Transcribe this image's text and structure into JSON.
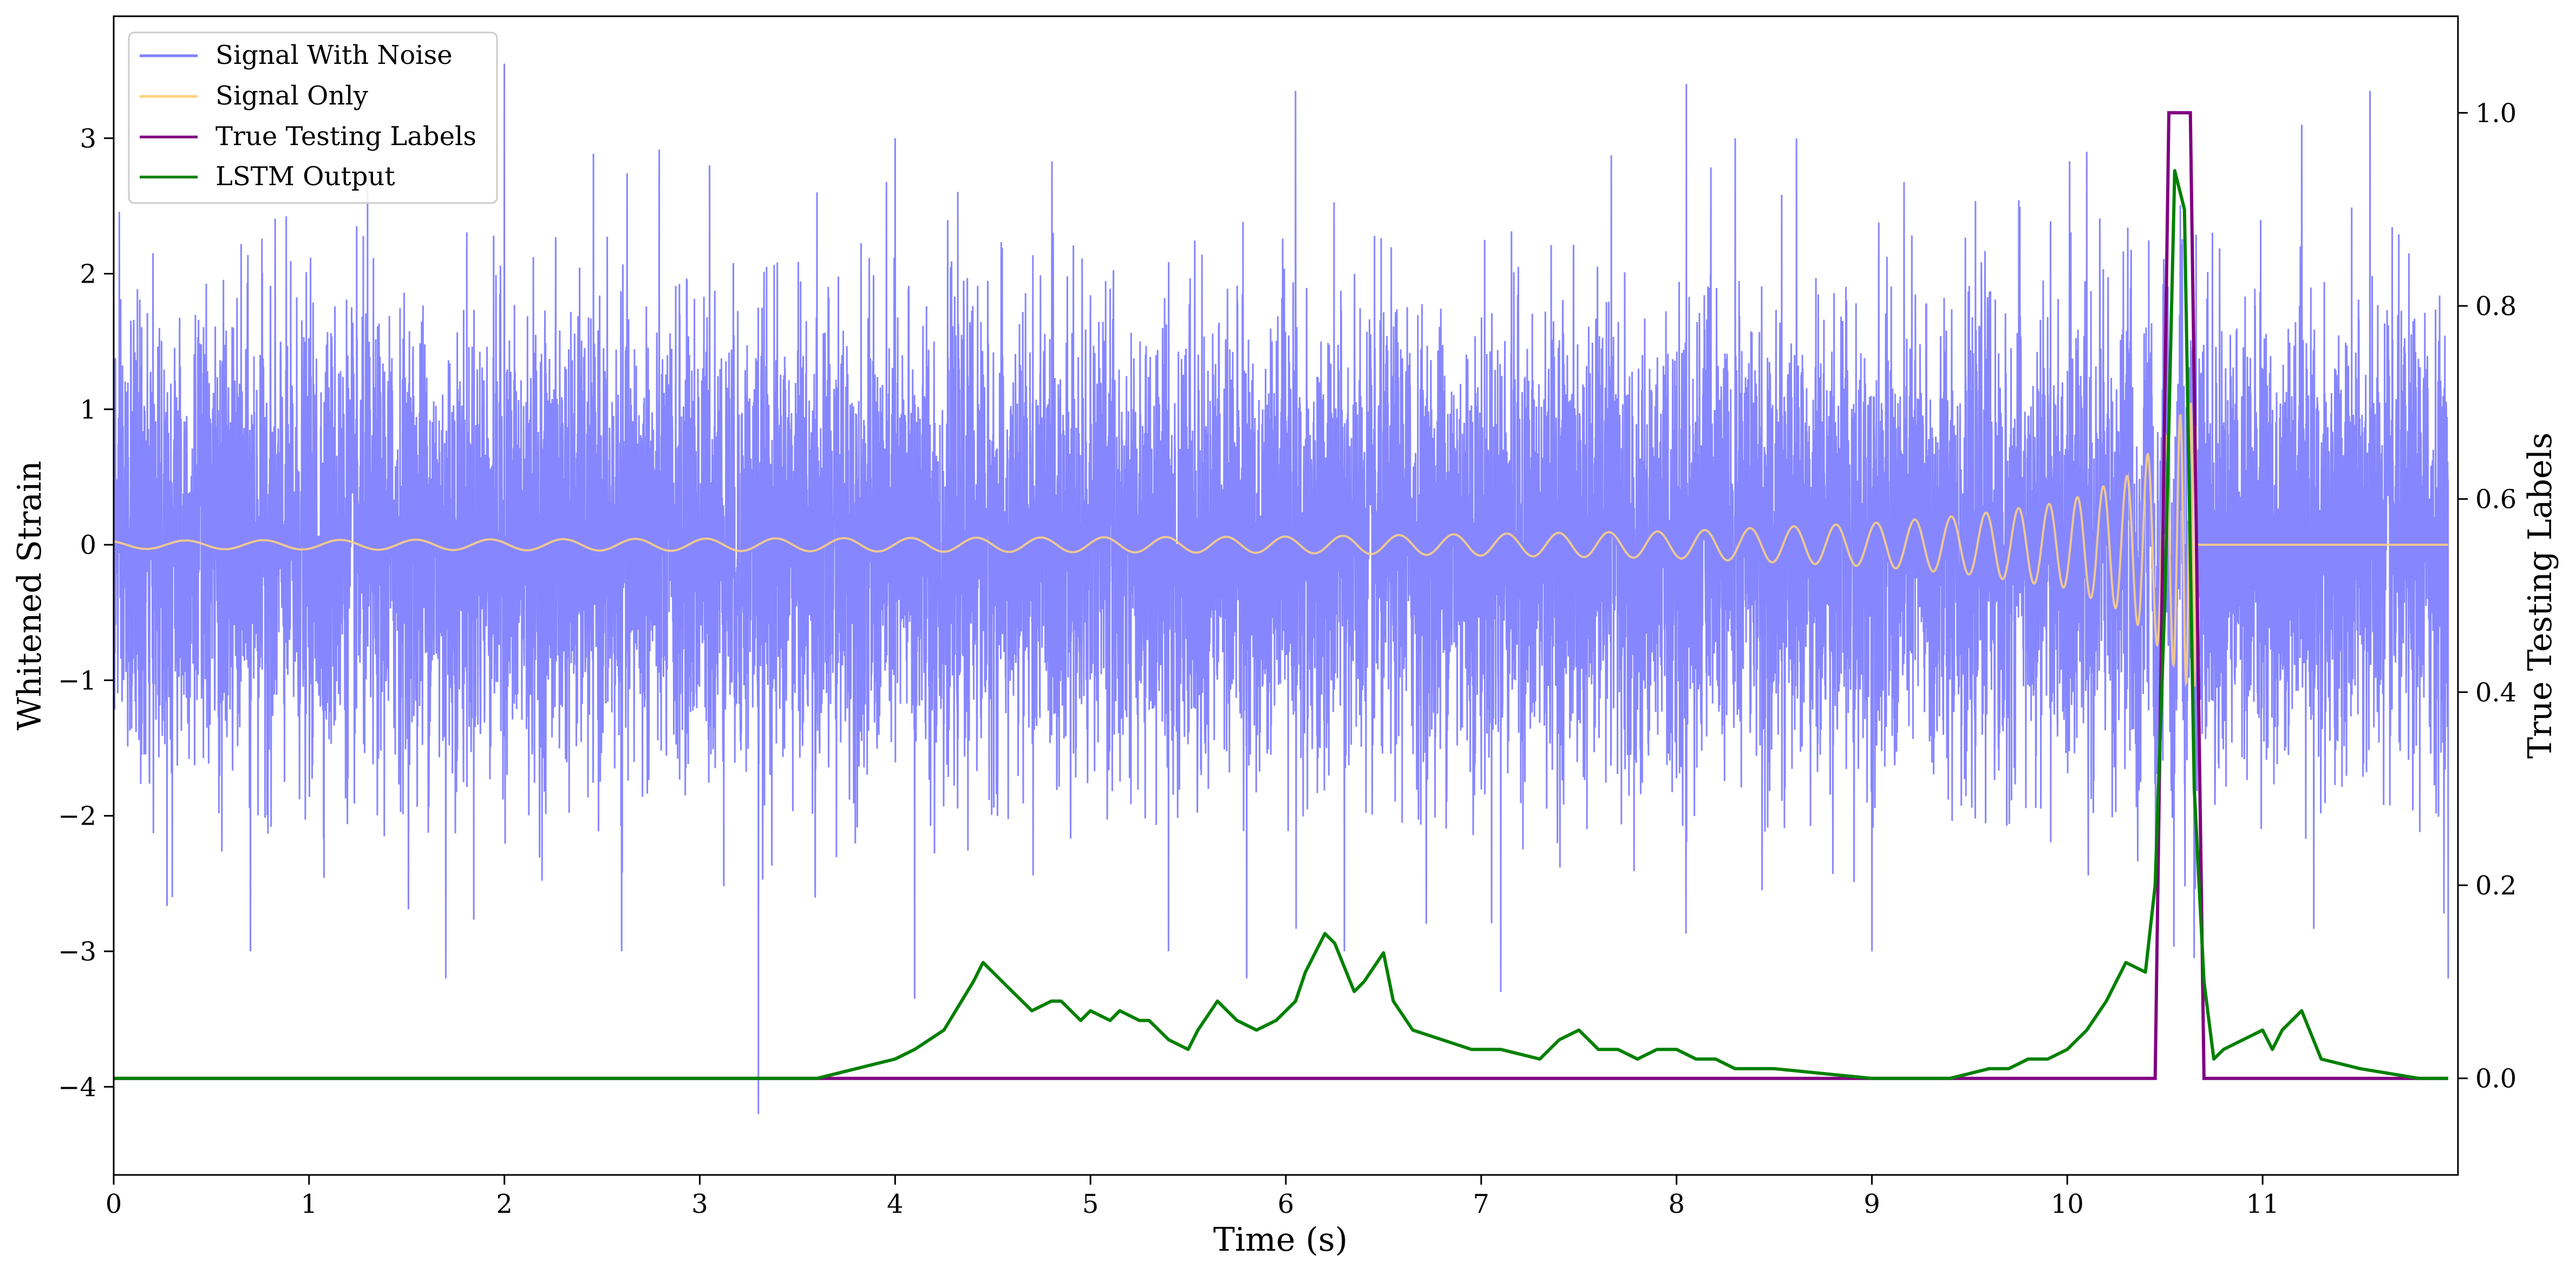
{
  "chart_data": {
    "type": "line",
    "xlabel": "Time (s)",
    "ylabel_left": "Whitened Strain",
    "ylabel_right": "True Testing Labels",
    "xlim": [
      0,
      12
    ],
    "ylim_left": [
      -4.65,
      3.9
    ],
    "ylim_right": [
      -0.1,
      1.1
    ],
    "x_ticks": [
      0,
      1,
      2,
      3,
      4,
      5,
      6,
      7,
      8,
      9,
      10,
      11
    ],
    "x_tick_labels": [
      "0",
      "1",
      "2",
      "3",
      "4",
      "5",
      "6",
      "7",
      "8",
      "9",
      "10",
      "11"
    ],
    "y_left_ticks": [
      -4,
      -3,
      -2,
      -1,
      0,
      1,
      2,
      3
    ],
    "y_left_tick_labels": [
      "−4",
      "−3",
      "−2",
      "−1",
      "0",
      "1",
      "2",
      "3"
    ],
    "y_right_ticks": [
      0.0,
      0.2,
      0.4,
      0.6,
      0.8,
      1.0
    ],
    "y_right_tick_labels": [
      "0.0",
      "0.2",
      "0.4",
      "0.6",
      "0.8",
      "1.0"
    ],
    "grid": false,
    "legend_position": "top-left",
    "legend": [
      {
        "label": "Signal With Noise",
        "color": "#8080ff"
      },
      {
        "label": "Signal Only",
        "color": "#ffd280"
      },
      {
        "label": "True Testing Labels",
        "color": "#800080"
      },
      {
        "label": "LSTM Output",
        "color": "#008000"
      }
    ],
    "series": [
      {
        "name": "Signal With Noise",
        "axis": "left",
        "color": "#8080ff",
        "description": "whitened detector noise, approx. ±1.5 RMS envelope, dense sampling from 0 to 12 s",
        "peak_values": [
          [
            0.0,
            1.8
          ],
          [
            0.3,
            -2.6
          ],
          [
            0.7,
            -3.0
          ],
          [
            1.3,
            2.7
          ],
          [
            1.7,
            -3.2
          ],
          [
            2.0,
            3.55
          ],
          [
            2.6,
            -3.0
          ],
          [
            3.05,
            2.8
          ],
          [
            3.3,
            -4.2
          ],
          [
            3.6,
            2.6
          ],
          [
            4.0,
            3.0
          ],
          [
            4.1,
            -3.35
          ],
          [
            5.4,
            -3.0
          ],
          [
            5.8,
            -3.2
          ],
          [
            6.05,
            3.35
          ],
          [
            6.3,
            -3.0
          ],
          [
            7.1,
            -3.3
          ],
          [
            8.05,
            3.4
          ],
          [
            8.3,
            3.0
          ],
          [
            9.0,
            -3.0
          ],
          [
            10.1,
            2.9
          ],
          [
            10.65,
            -3.05
          ],
          [
            11.2,
            3.1
          ],
          [
            11.55,
            3.35
          ],
          [
            11.95,
            -3.2
          ]
        ]
      },
      {
        "name": "Signal Only",
        "axis": "left",
        "color": "#ffd280",
        "description": "chirp waveform growing in amplitude and frequency until merger near 10.65 s, zero afterwards",
        "envelope": [
          [
            0.0,
            0.03
          ],
          [
            6.0,
            0.06
          ],
          [
            8.0,
            0.1
          ],
          [
            9.0,
            0.16
          ],
          [
            9.5,
            0.22
          ],
          [
            10.0,
            0.32
          ],
          [
            10.3,
            0.5
          ],
          [
            10.5,
            0.8
          ],
          [
            10.62,
            1.05
          ]
        ],
        "merger_time": 10.66
      },
      {
        "name": "True Testing Labels",
        "axis": "right",
        "color": "#800080",
        "x": [
          0.0,
          10.45,
          10.52,
          10.63,
          10.7,
          11.95
        ],
        "y": [
          0.0,
          0.0,
          1.0,
          1.0,
          0.0,
          0.0
        ]
      },
      {
        "name": "LSTM Output",
        "axis": "right",
        "color": "#008000",
        "x": [
          0.0,
          1.0,
          2.0,
          3.0,
          3.2,
          3.6,
          3.8,
          4.0,
          4.1,
          4.25,
          4.4,
          4.45,
          4.5,
          4.6,
          4.7,
          4.8,
          4.85,
          4.95,
          5.0,
          5.1,
          5.15,
          5.25,
          5.3,
          5.4,
          5.5,
          5.55,
          5.65,
          5.75,
          5.85,
          5.95,
          6.05,
          6.1,
          6.2,
          6.25,
          6.35,
          6.4,
          6.5,
          6.55,
          6.65,
          6.8,
          6.95,
          7.1,
          7.3,
          7.4,
          7.5,
          7.6,
          7.7,
          7.8,
          7.9,
          8.0,
          8.1,
          8.2,
          8.3,
          8.5,
          9.0,
          9.4,
          9.6,
          9.7,
          9.8,
          9.9,
          10.0,
          10.1,
          10.2,
          10.3,
          10.4,
          10.45,
          10.5,
          10.55,
          10.6,
          10.65,
          10.7,
          10.75,
          10.8,
          10.9,
          11.0,
          11.05,
          11.1,
          11.2,
          11.3,
          11.5,
          11.8,
          11.95
        ],
        "y": [
          0.0,
          0.0,
          0.0,
          0.0,
          0.0,
          0.0,
          0.01,
          0.02,
          0.03,
          0.05,
          0.1,
          0.12,
          0.11,
          0.09,
          0.07,
          0.08,
          0.08,
          0.06,
          0.07,
          0.06,
          0.07,
          0.06,
          0.06,
          0.04,
          0.03,
          0.05,
          0.08,
          0.06,
          0.05,
          0.06,
          0.08,
          0.11,
          0.15,
          0.14,
          0.09,
          0.1,
          0.13,
          0.08,
          0.05,
          0.04,
          0.03,
          0.03,
          0.02,
          0.04,
          0.05,
          0.03,
          0.03,
          0.02,
          0.03,
          0.03,
          0.02,
          0.02,
          0.01,
          0.01,
          0.0,
          0.0,
          0.01,
          0.01,
          0.02,
          0.02,
          0.03,
          0.05,
          0.08,
          0.12,
          0.11,
          0.2,
          0.5,
          0.94,
          0.9,
          0.3,
          0.1,
          0.02,
          0.03,
          0.04,
          0.05,
          0.03,
          0.05,
          0.07,
          0.02,
          0.01,
          0.0,
          0.0
        ]
      }
    ]
  }
}
